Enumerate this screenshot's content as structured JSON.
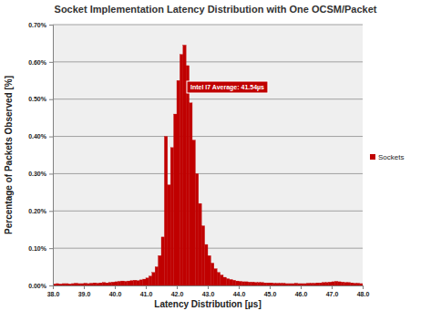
{
  "chart_data": {
    "type": "histogram",
    "title": "Socket Implementation Latency Distribution with One OCSM/Packet",
    "x_label": "Latency Distribution [µs]",
    "y_label": "Percentage of Packets Observed [%]",
    "annotation": "Intel I7 Average: 41.54µs",
    "legend": "right",
    "grid": true,
    "series": [
      {
        "name": "Sockets",
        "color": "#c00000",
        "bins": [
          38.0,
          38.1,
          38.2,
          38.3,
          38.4,
          38.5,
          38.6,
          38.7,
          38.8,
          38.9,
          39.0,
          39.1,
          39.2,
          39.3,
          39.4,
          39.5,
          39.6,
          39.7,
          39.8,
          39.9,
          40.0,
          40.1,
          40.2,
          40.3,
          40.4,
          40.5,
          40.6,
          40.7,
          40.8,
          40.9,
          41.0,
          41.1,
          41.2,
          41.3,
          41.4,
          41.5,
          41.6,
          41.7,
          41.8,
          41.9,
          42.0,
          42.1,
          42.2,
          42.3,
          42.4,
          42.5,
          42.6,
          42.7,
          42.8,
          42.9,
          43.0,
          43.1,
          43.2,
          43.3,
          43.4,
          43.5,
          43.6,
          43.7,
          43.8,
          43.9,
          44.0,
          44.1,
          44.2,
          44.3,
          44.4,
          44.5,
          44.6,
          44.7,
          44.8,
          44.9,
          45.0,
          45.1,
          45.2,
          45.3,
          45.4,
          45.5,
          45.6,
          45.7,
          45.8,
          45.9,
          46.0,
          46.1,
          46.2,
          46.3,
          46.4,
          46.5,
          46.6,
          46.7,
          46.8,
          46.9,
          47.0,
          47.1,
          47.2,
          47.3,
          47.4,
          47.5,
          47.6,
          47.7,
          47.8,
          47.9,
          48.0
        ],
        "values": [
          0.004,
          0.005,
          0.004,
          0.005,
          0.005,
          0.004,
          0.005,
          0.006,
          0.005,
          0.005,
          0.006,
          0.005,
          0.006,
          0.007,
          0.006,
          0.007,
          0.008,
          0.007,
          0.008,
          0.009,
          0.01,
          0.011,
          0.012,
          0.011,
          0.012,
          0.013,
          0.014,
          0.013,
          0.015,
          0.017,
          0.02,
          0.025,
          0.035,
          0.05,
          0.08,
          0.13,
          0.4,
          0.27,
          0.37,
          0.46,
          0.55,
          0.62,
          0.645,
          0.59,
          0.49,
          0.39,
          0.3,
          0.22,
          0.16,
          0.11,
          0.08,
          0.06,
          0.045,
          0.035,
          0.028,
          0.022,
          0.018,
          0.016,
          0.014,
          0.012,
          0.011,
          0.01,
          0.01,
          0.009,
          0.009,
          0.008,
          0.008,
          0.008,
          0.007,
          0.007,
          0.007,
          0.006,
          0.006,
          0.006,
          0.006,
          0.005,
          0.005,
          0.005,
          0.006,
          0.005,
          0.005,
          0.005,
          0.006,
          0.006,
          0.006,
          0.007,
          0.007,
          0.008,
          0.008,
          0.009,
          0.01,
          0.011,
          0.01,
          0.009,
          0.008,
          0.008,
          0.007,
          0.006,
          0.006,
          0.005
        ]
      }
    ],
    "xlim": [
      38,
      48
    ],
    "xticks": [
      {
        "value": 38,
        "label": "38.0"
      },
      {
        "value": 39,
        "label": "39.0"
      },
      {
        "value": 40,
        "label": "40.0"
      },
      {
        "value": 41,
        "label": "41.0"
      },
      {
        "value": 42,
        "label": "42.0"
      },
      {
        "value": 43,
        "label": "43.0"
      },
      {
        "value": 44,
        "label": "44.0"
      },
      {
        "value": 45,
        "label": "45.0"
      },
      {
        "value": 46,
        "label": "46.0"
      },
      {
        "value": 47,
        "label": "47.0"
      },
      {
        "value": 48,
        "label": "48.0"
      }
    ],
    "ylim": [
      0,
      0.7
    ],
    "yticks": [
      {
        "value": 0,
        "label": "0.00%"
      },
      {
        "value": 0.1,
        "label": "0.10%"
      },
      {
        "value": 0.2,
        "label": "0.20%"
      },
      {
        "value": 0.3,
        "label": "0.30%"
      },
      {
        "value": 0.4,
        "label": "0.40%"
      },
      {
        "value": 0.5,
        "label": "0.50%"
      },
      {
        "value": 0.6,
        "label": "0.60%"
      },
      {
        "value": 0.7,
        "label": "0.70%"
      }
    ]
  }
}
